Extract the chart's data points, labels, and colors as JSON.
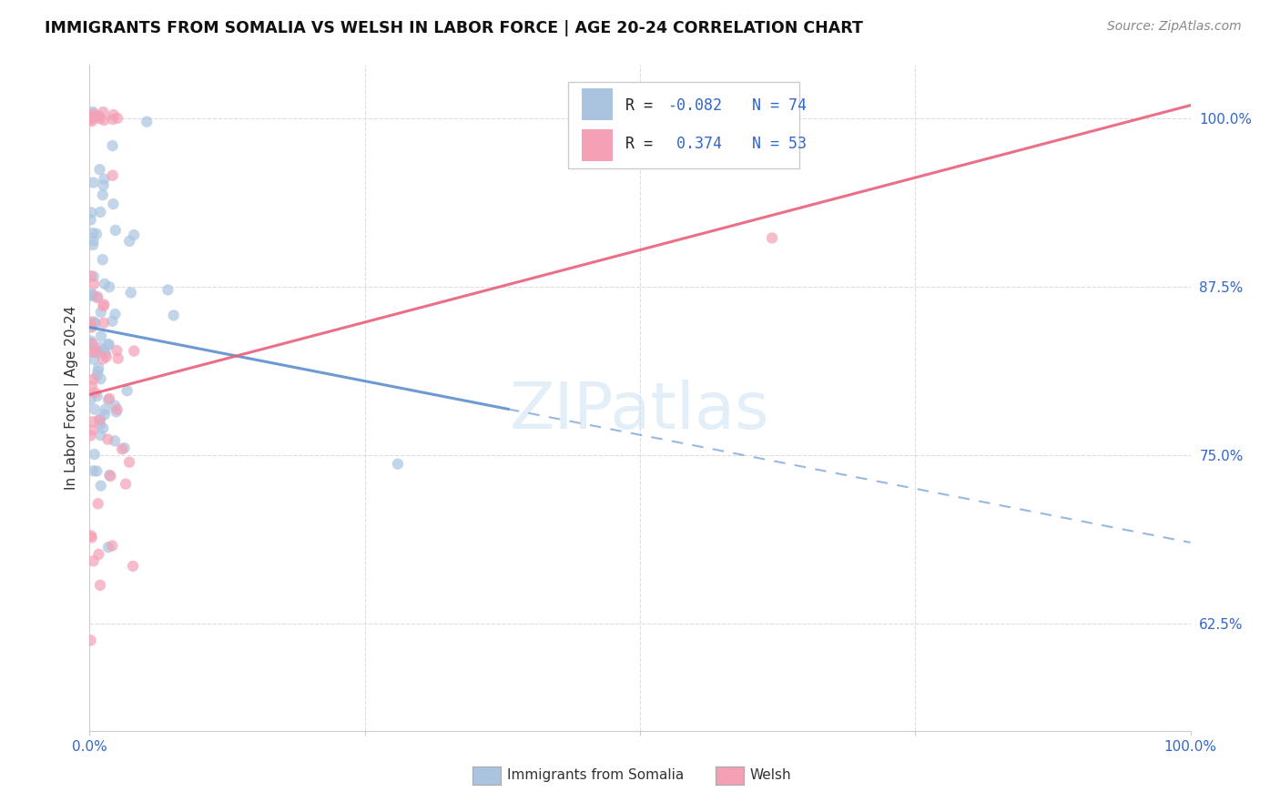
{
  "title": "IMMIGRANTS FROM SOMALIA VS WELSH IN LABOR FORCE | AGE 20-24 CORRELATION CHART",
  "source": "Source: ZipAtlas.com",
  "ylabel": "In Labor Force | Age 20-24",
  "yticks": [
    0.625,
    0.75,
    0.875,
    1.0
  ],
  "ytick_labels": [
    "62.5%",
    "75.0%",
    "87.5%",
    "100.0%"
  ],
  "xticks": [
    0.0,
    0.25,
    0.5,
    0.75,
    1.0
  ],
  "xtick_labels": [
    "0.0%",
    "",
    "",
    "",
    "100.0%"
  ],
  "xlim": [
    0.0,
    1.0
  ],
  "ylim": [
    0.545,
    1.04
  ],
  "somalia_color": "#aac4e0",
  "welsh_color": "#f5a0b5",
  "somalia_line_color": "#5588cc",
  "welsh_line_color": "#e8607a",
  "somalia_R": -0.082,
  "somalia_N": 74,
  "welsh_R": 0.374,
  "welsh_N": 53,
  "legend_R_color": "#3366cc",
  "watermark_text": "ZIPatlas",
  "background_color": "#ffffff",
  "grid_color": "#dddddd",
  "somalia_line_x0": 0.0,
  "somalia_line_y0": 0.845,
  "somalia_line_x1": 1.0,
  "somalia_line_y1": 0.685,
  "somalia_line_solid_end": 0.38,
  "welsh_line_x0": 0.0,
  "welsh_line_y0": 0.795,
  "welsh_line_x1": 1.0,
  "welsh_line_y1": 1.01
}
